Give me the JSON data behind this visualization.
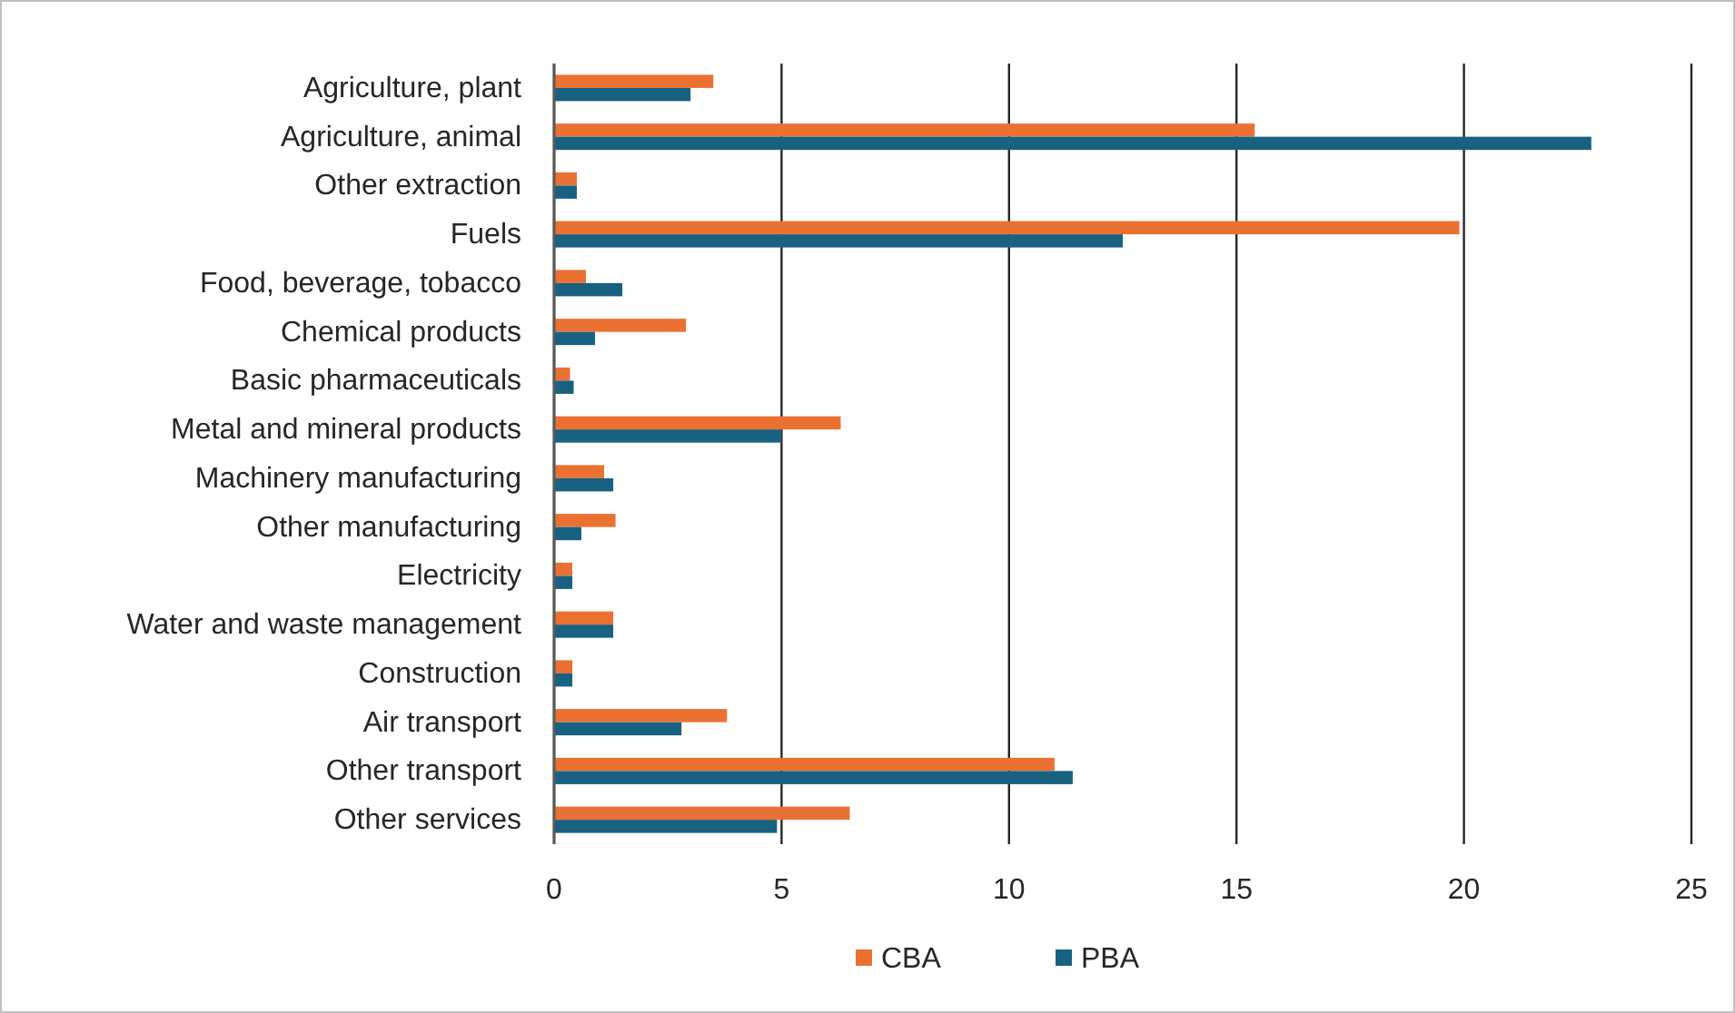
{
  "chart_data": {
    "type": "bar",
    "orientation": "horizontal",
    "categories": [
      "Agriculture, plant",
      "Agriculture, animal",
      "Other extraction",
      "Fuels",
      "Food, beverage, tobacco",
      "Chemical products",
      "Basic pharmaceuticals",
      "Metal and mineral products",
      "Machinery manufacturing",
      "Other manufacturing",
      "Electricity",
      "Water and waste management",
      "Construction",
      "Air transport",
      "Other transport",
      "Other services"
    ],
    "series": [
      {
        "name": "CBA",
        "color": "#eb7132",
        "values": [
          3.5,
          15.4,
          0.5,
          19.9,
          0.7,
          2.9,
          0.35,
          6.3,
          1.1,
          1.35,
          0.4,
          1.3,
          0.4,
          3.8,
          11.0,
          6.5
        ]
      },
      {
        "name": "PBA",
        "color": "#186180",
        "values": [
          3.0,
          22.8,
          0.5,
          12.5,
          1.5,
          0.9,
          0.43,
          5.0,
          1.3,
          0.6,
          0.4,
          1.3,
          0.4,
          2.8,
          11.4,
          4.9
        ]
      }
    ],
    "xlim": [
      0,
      25
    ],
    "xticks": [
      0,
      5,
      10,
      15,
      20,
      25
    ],
    "grid": "x",
    "legend": "bottom"
  }
}
